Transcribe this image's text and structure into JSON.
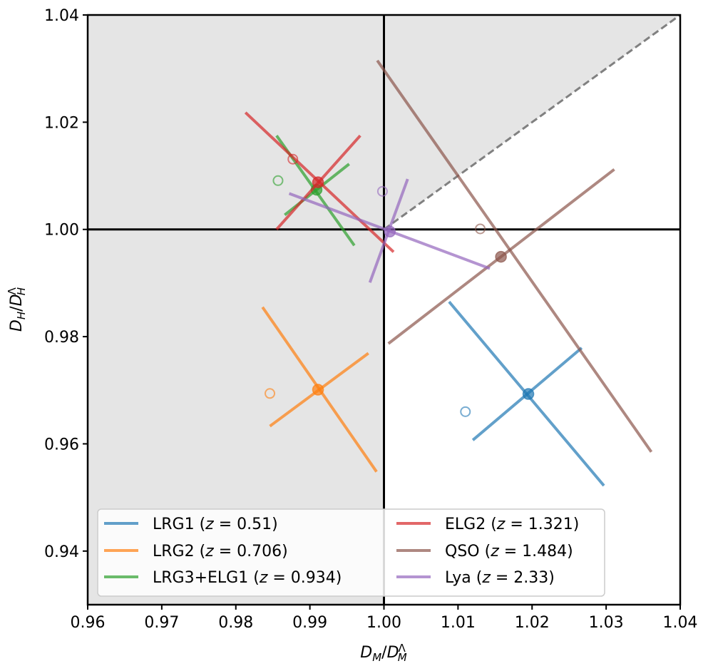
{
  "chart_data": {
    "type": "scatter",
    "title": "",
    "xlabel": "D_M/D_M^Λ",
    "ylabel": "D_H/D_H^Λ",
    "xlim": [
      0.96,
      1.04
    ],
    "ylim": [
      0.93,
      1.04
    ],
    "xticks": [
      "0.96",
      "0.97",
      "0.98",
      "0.99",
      "1.00",
      "1.01",
      "1.02",
      "1.03",
      "1.04"
    ],
    "yticks": [
      "0.94",
      "0.96",
      "0.98",
      "1.00",
      "1.02",
      "1.04"
    ],
    "grid": false,
    "legend_position": "lower-center",
    "reference_lines": {
      "x": 1.0,
      "y": 1.0
    },
    "diagonal": {
      "from": [
        1.0,
        1.0
      ],
      "to": [
        1.04,
        1.04
      ],
      "style": "dashed",
      "color": "#808080"
    },
    "shaded_region_color": "#e5e5e5",
    "series": [
      {
        "label": "LRG1 (z = 0.51)",
        "z": "0.51",
        "color": "#1f77b4",
        "center": [
          1.0195,
          0.9693
        ],
        "open_point": [
          1.011,
          0.966
        ],
        "axis_a": [
          [
            1.0088,
            0.9865
          ],
          [
            1.0297,
            0.9522
          ]
        ],
        "axis_b": [
          [
            1.012,
            0.9607
          ],
          [
            1.0267,
            0.9779
          ]
        ]
      },
      {
        "label": "LRG2 (z = 0.706)",
        "z": "0.706",
        "color": "#ff7f0e",
        "center": [
          0.9911,
          0.9701
        ],
        "open_point": [
          0.9846,
          0.9694
        ],
        "axis_a": [
          [
            0.9836,
            0.9855
          ],
          [
            0.999,
            0.9548
          ]
        ],
        "axis_b": [
          [
            0.9846,
            0.9633
          ],
          [
            0.9979,
            0.9769
          ]
        ]
      },
      {
        "label": "LRG3+ELG1 (z = 0.934)",
        "z": "0.934",
        "color": "#2ca02c",
        "center": [
          0.9909,
          1.0074
        ],
        "open_point": [
          0.9857,
          1.0091
        ],
        "axis_a": [
          [
            0.9855,
            1.0175
          ],
          [
            0.996,
            0.997
          ]
        ],
        "axis_b": [
          [
            0.9866,
            1.0027
          ],
          [
            0.9953,
            1.0122
          ]
        ]
      },
      {
        "label": "ELG2 (z = 1.321)",
        "z": "1.321",
        "color": "#d62728",
        "center": [
          0.9911,
          1.0088
        ],
        "open_point": [
          0.9877,
          1.0131
        ],
        "axis_a": [
          [
            0.9813,
            1.0218
          ],
          [
            1.0013,
            0.9958
          ]
        ],
        "axis_b": [
          [
            0.9855,
            1.0
          ],
          [
            0.9968,
            1.0175
          ]
        ]
      },
      {
        "label": "QSO (z = 1.484)",
        "z": "1.484",
        "color": "#8c564b",
        "center": [
          1.0158,
          0.9949
        ],
        "open_point": [
          1.013,
          1.0001
        ],
        "axis_a": [
          [
            0.9991,
            1.0315
          ],
          [
            1.0361,
            0.9585
          ]
        ],
        "axis_b": [
          [
            1.0006,
            0.9787
          ],
          [
            1.0311,
            1.0112
          ]
        ]
      },
      {
        "label": "Lya (z = 2.33)",
        "z": "2.33",
        "color": "#9467bd",
        "center": [
          1.0008,
          0.9996
        ],
        "open_point": [
          0.9998,
          1.0071
        ],
        "axis_a": [
          [
            0.9872,
            1.0067
          ],
          [
            1.0143,
            0.9927
          ]
        ],
        "axis_b": [
          [
            0.9981,
            0.9901
          ],
          [
            1.0032,
            1.0094
          ]
        ]
      }
    ]
  },
  "legend": {
    "columns": [
      [
        "LRG1 (z = 0.51)",
        "LRG2 (z = 0.706)",
        "LRG3+ELG1 (z = 0.934)"
      ],
      [
        "ELG2 (z = 1.321)",
        "QSO (z = 1.484)",
        "Lya (z = 2.33)"
      ]
    ]
  }
}
